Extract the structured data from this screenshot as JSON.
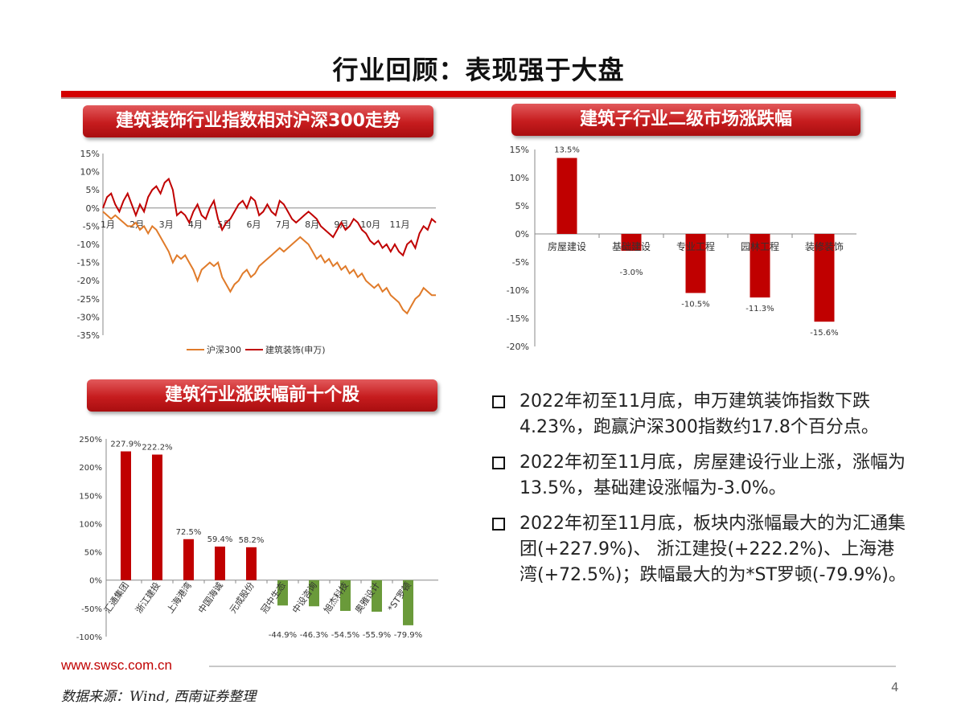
{
  "title": "行业回顾：表现强于大盘",
  "panels": {
    "index": "建筑装饰行业指数相对沪深300走势",
    "sub": "建筑子行业二级市场涨跌幅",
    "top": "建筑行业涨跌幅前十个股"
  },
  "chart_data": [
    {
      "type": "line",
      "ylim": [
        -35,
        15
      ],
      "y_ticks": [
        "15%",
        "10%",
        "5%",
        "0%",
        "-5%",
        "-10%",
        "-15%",
        "-20%",
        "-25%",
        "-30%",
        "-35%"
      ],
      "x_labels": [
        "1月",
        "2月",
        "3月",
        "4月",
        "5月",
        "6月",
        "7月",
        "8月",
        "9月",
        "10月",
        "11月"
      ],
      "legend_position": "bottom",
      "series": [
        {
          "name": "沪深300",
          "color": "#e07b2a",
          "values": [
            -1,
            -2,
            -3,
            -2,
            -3,
            -4,
            -5,
            -5,
            -4,
            -6,
            -5,
            -7,
            -5,
            -6,
            -8,
            -10,
            -12,
            -15,
            -13,
            -14,
            -13,
            -15,
            -17,
            -20,
            -17,
            -16,
            -15,
            -16,
            -15,
            -19,
            -21,
            -23,
            -21,
            -20,
            -18,
            -17,
            -19,
            -18,
            -16,
            -15,
            -14,
            -13,
            -12,
            -11,
            -12,
            -11,
            -10,
            -9,
            -8,
            -9,
            -10,
            -12,
            -14,
            -13,
            -15,
            -14,
            -16,
            -15,
            -17,
            -16,
            -18,
            -17,
            -19,
            -18,
            -20,
            -21,
            -22,
            -21,
            -23,
            -22,
            -24,
            -25,
            -26,
            -28,
            -29,
            -27,
            -25,
            -24,
            -22,
            -23,
            -24,
            -24
          ]
        },
        {
          "name": "建筑装饰(申万)",
          "color": "#c00000",
          "values": [
            0,
            3,
            4,
            1,
            -1,
            2,
            4,
            1,
            -2,
            1,
            -1,
            3,
            5,
            6,
            4,
            7,
            8,
            5,
            -2,
            -1,
            -2,
            -4,
            -1,
            1,
            -2,
            -3,
            0,
            2,
            -3,
            -6,
            -4,
            -3,
            -1,
            1,
            2,
            0,
            3,
            2,
            -2,
            -1,
            1,
            -1,
            -2,
            2,
            1,
            -1,
            -3,
            -4,
            -3,
            -2,
            -1,
            -2,
            -3,
            -5,
            -6,
            -7,
            -8,
            -6,
            -4,
            -6,
            -5,
            -3,
            -4,
            -6,
            -7,
            -9,
            -10,
            -9,
            -11,
            -10,
            -12,
            -10,
            -12,
            -13,
            -10,
            -9,
            -11,
            -7,
            -5,
            -6,
            -3,
            -4
          ]
        }
      ]
    },
    {
      "type": "bar",
      "ylim": [
        -20,
        15
      ],
      "y_ticks": [
        "15%",
        "10%",
        "5%",
        "0%",
        "-5%",
        "-10%",
        "-15%",
        "-20%"
      ],
      "categories": [
        "房屋建设",
        "基础建设",
        "专业工程",
        "园林工程",
        "装修装饰"
      ],
      "values": [
        13.5,
        -3.0,
        -10.5,
        -11.3,
        -15.6
      ],
      "labels": [
        "13.5%",
        "-3.0%",
        "-10.5%",
        "-11.3%",
        "-15.6%"
      ],
      "colors": {
        "bar": "#c00000"
      }
    },
    {
      "type": "bar",
      "ylim": [
        -100,
        250
      ],
      "y_ticks": [
        "250%",
        "200%",
        "150%",
        "100%",
        "50%",
        "0%",
        "-50%",
        "-100%"
      ],
      "categories": [
        "汇通集团",
        "浙江建投",
        "上海港湾",
        "中国海诚",
        "元成股份",
        "冠中生态",
        "中设咨询",
        "旭杰科技",
        "奥雅设计",
        "*ST罗顿"
      ],
      "values": [
        227.9,
        222.2,
        72.5,
        59.4,
        58.2,
        -44.9,
        -46.3,
        -54.5,
        -55.9,
        -79.9
      ],
      "labels": [
        "227.9%",
        "222.2%",
        "72.5%",
        "59.4%",
        "58.2%",
        "-44.9%",
        "-46.3%",
        "-54.5%",
        "-55.9%",
        "-79.9%"
      ],
      "colors": {
        "up": "#c00000",
        "down": "#6a9a3a"
      }
    }
  ],
  "bullets": [
    "2022年初至11月底，申万建筑装饰指数下跌4.23%，跑赢沪深300指数约17.8个百分点。",
    "2022年初至11月底，房屋建设行业上涨，涨幅为13.5%，基础建设涨幅为-3.0%。",
    "2022年初至11月底，板块内涨幅最大的为汇通集团(+227.9%)、 浙江建投(+222.2%)、上海港湾(+72.5%)；跌幅最大的为*ST罗顿(-79.9%)。"
  ],
  "footer": {
    "url": "www.swsc.com.cn",
    "source": "数据来源：Wind, 西南证券整理",
    "page": "4"
  }
}
